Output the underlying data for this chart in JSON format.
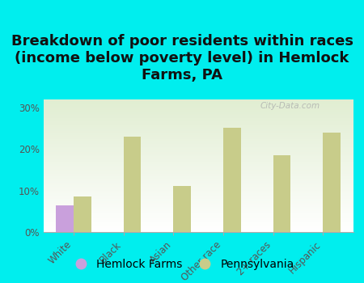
{
  "title": "Breakdown of poor residents within races\n(income below poverty level) in Hemlock\nFarms, PA",
  "categories": [
    "White",
    "Black",
    "Asian",
    "Other race",
    "2+ races",
    "Hispanic"
  ],
  "hemlock_values": [
    6.5,
    0,
    0,
    0,
    0,
    0
  ],
  "pennsylvania_values": [
    8.5,
    23.0,
    11.0,
    25.0,
    18.5,
    24.0
  ],
  "hemlock_color": "#c9a0dc",
  "pennsylvania_color": "#c8cc8a",
  "background_color": "#00eeee",
  "ytick_labels": [
    "0%",
    "10%",
    "20%",
    "30%"
  ],
  "ytick_values": [
    0,
    10,
    20,
    30
  ],
  "ylim": [
    0,
    32
  ],
  "bar_width": 0.35,
  "title_fontsize": 13,
  "tick_fontsize": 8.5,
  "legend_fontsize": 10,
  "watermark": "City-Data.com"
}
